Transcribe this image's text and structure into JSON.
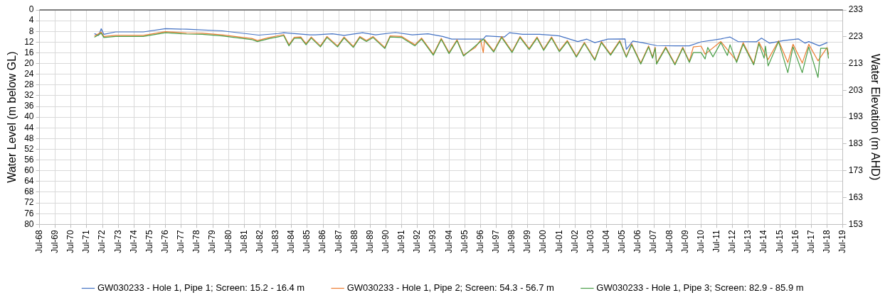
{
  "chart_data": {
    "type": "line",
    "xlabel": null,
    "ylabel": "Water Level (m below GL)",
    "y2label": "Water Elevation (m AHD)",
    "xlim": [
      "1968-07",
      "2019-07"
    ],
    "xticks": [
      {
        "value": "1968-07",
        "label": "Jul-68"
      },
      {
        "value": "1969-07",
        "label": "Jul-69"
      },
      {
        "value": "1970-07",
        "label": "Jul-70"
      },
      {
        "value": "1971-07",
        "label": "Jul-71"
      },
      {
        "value": "1972-07",
        "label": "Jul-72"
      },
      {
        "value": "1973-07",
        "label": "Jul-73"
      },
      {
        "value": "1974-07",
        "label": "Jul-74"
      },
      {
        "value": "1975-07",
        "label": "Jul-75"
      },
      {
        "value": "1976-07",
        "label": "Jul-76"
      },
      {
        "value": "1977-07",
        "label": "Jul-77"
      },
      {
        "value": "1978-07",
        "label": "Jul-78"
      },
      {
        "value": "1979-07",
        "label": "Jul-79"
      },
      {
        "value": "1980-07",
        "label": "Jul-80"
      },
      {
        "value": "1981-07",
        "label": "Jul-81"
      },
      {
        "value": "1982-07",
        "label": "Jul-82"
      },
      {
        "value": "1983-07",
        "label": "Jul-83"
      },
      {
        "value": "1984-07",
        "label": "Jul-84"
      },
      {
        "value": "1985-07",
        "label": "Jul-85"
      },
      {
        "value": "1986-07",
        "label": "Jul-86"
      },
      {
        "value": "1987-07",
        "label": "Jul-87"
      },
      {
        "value": "1988-07",
        "label": "Jul-88"
      },
      {
        "value": "1989-07",
        "label": "Jul-89"
      },
      {
        "value": "1990-07",
        "label": "Jul-90"
      },
      {
        "value": "1991-07",
        "label": "Jul-91"
      },
      {
        "value": "1992-07",
        "label": "Jul-92"
      },
      {
        "value": "1993-07",
        "label": "Jul-93"
      },
      {
        "value": "1994-07",
        "label": "Jul-94"
      },
      {
        "value": "1995-07",
        "label": "Jul-95"
      },
      {
        "value": "1996-07",
        "label": "Jul-96"
      },
      {
        "value": "1997-07",
        "label": "Jul-97"
      },
      {
        "value": "1998-07",
        "label": "Jul-98"
      },
      {
        "value": "1999-07",
        "label": "Jul-99"
      },
      {
        "value": "2000-07",
        "label": "Jul-00"
      },
      {
        "value": "2001-07",
        "label": "Jul-01"
      },
      {
        "value": "2002-07",
        "label": "Jul-02"
      },
      {
        "value": "2003-07",
        "label": "Jul-03"
      },
      {
        "value": "2004-07",
        "label": "Jul-04"
      },
      {
        "value": "2005-07",
        "label": "Jul-05"
      },
      {
        "value": "2006-07",
        "label": "Jul-06"
      },
      {
        "value": "2007-07",
        "label": "Jul-07"
      },
      {
        "value": "2008-07",
        "label": "Jul-08"
      },
      {
        "value": "2009-07",
        "label": "Jul-09"
      },
      {
        "value": "2010-07",
        "label": "Jul-10"
      },
      {
        "value": "2011-07",
        "label": "Jul-11"
      },
      {
        "value": "2012-07",
        "label": "Jul-12"
      },
      {
        "value": "2013-07",
        "label": "Jul-13"
      },
      {
        "value": "2014-07",
        "label": "Jul-14"
      },
      {
        "value": "2015-07",
        "label": "Jul-15"
      },
      {
        "value": "2016-07",
        "label": "Jul-16"
      },
      {
        "value": "2017-07",
        "label": "Jul-17"
      },
      {
        "value": "2018-07",
        "label": "Jul-18"
      },
      {
        "value": "2019-07",
        "label": "Jul-19"
      }
    ],
    "ylim": [
      80,
      0
    ],
    "yticks": [
      0,
      4,
      8,
      12,
      16,
      20,
      24,
      28,
      32,
      36,
      40,
      44,
      48,
      52,
      56,
      60,
      64,
      68,
      72,
      76,
      80
    ],
    "y2lim": [
      153,
      233
    ],
    "y2ticks": [
      153,
      163,
      173,
      183,
      193,
      203,
      213,
      223,
      233
    ],
    "grid": true,
    "legend": "bottom",
    "series": [
      {
        "name": "GW030233 - Hole 1, Pipe 1; Screen: 15.2 - 16.4 m",
        "color": "#4472c4",
        "x": [
          "1972-01",
          "1972-04",
          "1972-06",
          "1972-08",
          "1973-05",
          "1975-02",
          "1976-07",
          "1977-11",
          "1980-02",
          "1982-06",
          "1983-09",
          "1984-01",
          "1985-09",
          "1986-01",
          "1987-02",
          "1987-11",
          "1989-01",
          "1989-11",
          "1991-02",
          "1992-03",
          "1993-03",
          "1994-02",
          "1994-09",
          "1996-01",
          "1996-09",
          "1996-11",
          "1998-01",
          "1998-05",
          "1999-03",
          "2000-04",
          "2001-03",
          "2001-07",
          "2002-09",
          "2003-04",
          "2003-10",
          "2004-08",
          "2005-09",
          "2005-10",
          "2006-03",
          "2006-10",
          "2007-09",
          "2008-11",
          "2009-10",
          "2010-07",
          "2011-10",
          "2012-05",
          "2012-11",
          "2014-01",
          "2014-05",
          "2014-11",
          "2015-10",
          "2016-09",
          "2017-02",
          "2017-05",
          "2018-01",
          "2018-07"
        ],
        "values": [
          8.9,
          9.5,
          7.0,
          9.1,
          8.2,
          8.2,
          7.0,
          7.2,
          7.8,
          9.4,
          8.8,
          8.5,
          9.3,
          9.3,
          8.9,
          9.5,
          8.5,
          9.3,
          8.4,
          9.3,
          8.9,
          9.9,
          10.9,
          10.9,
          10.9,
          9.7,
          10.1,
          8.5,
          9.1,
          9.1,
          9.5,
          9.7,
          11.8,
          10.9,
          12.2,
          10.9,
          10.8,
          14.7,
          11.6,
          12.2,
          13.3,
          13.4,
          13.4,
          11.9,
          10.8,
          10.1,
          11.8,
          11.9,
          10.5,
          12.4,
          11.4,
          10.8,
          12.4,
          11.8,
          13.4,
          12.2
        ]
      },
      {
        "name": "GW030233 - Hole 1, Pipe 2; Screen: 54.3 - 56.7 m",
        "color": "#ed7d31",
        "x": [
          "1972-01",
          "1972-06",
          "1972-08",
          "1973-05",
          "1975-02",
          "1976-07",
          "1977-11",
          "1978-11",
          "1980-02",
          "1981-03",
          "1982-01",
          "1982-05",
          "1983-02",
          "1983-09",
          "1984-01",
          "1984-05",
          "1984-09",
          "1985-02",
          "1985-06",
          "1985-10",
          "1986-05",
          "1986-10",
          "1987-06",
          "1987-11",
          "1988-06",
          "1988-11",
          "1989-04",
          "1989-09",
          "1990-06",
          "1990-10",
          "1991-07",
          "1992-05",
          "1992-10",
          "1993-07",
          "1994-01",
          "1994-07",
          "1995-01",
          "1995-06",
          "1996-03",
          "1996-07",
          "1996-09",
          "1996-10",
          "1997-05",
          "1997-11",
          "1998-07",
          "1999-01",
          "1999-08",
          "2000-02",
          "2000-07",
          "2001-01",
          "2001-07",
          "2002-01",
          "2002-08",
          "2003-02",
          "2003-10",
          "2004-03",
          "2004-10",
          "2005-05",
          "2005-10",
          "2006-02",
          "2006-09",
          "2007-03",
          "2007-06",
          "2007-08",
          "2007-09",
          "2008-04",
          "2008-11",
          "2009-05",
          "2009-10",
          "2010-01",
          "2010-07",
          "2010-10",
          "2011-10",
          "2012-10",
          "2013-03",
          "2013-11",
          "2014-03",
          "2014-10",
          "2015-06",
          "2016-01",
          "2016-05",
          "2016-12",
          "2017-05",
          "2017-12",
          "2018-07",
          "2018-08"
        ],
        "values": [
          9.7,
          8.3,
          9.9,
          9.5,
          9.5,
          8.1,
          8.6,
          8.7,
          9.3,
          10.1,
          10.7,
          11.4,
          10.3,
          9.6,
          9.2,
          13.0,
          10.2,
          10.1,
          12.6,
          10.1,
          13.4,
          9.9,
          13.4,
          10.1,
          13.6,
          9.9,
          11.4,
          9.9,
          14.0,
          9.7,
          9.9,
          13.0,
          10.5,
          16.5,
          10.6,
          15.9,
          11.1,
          16.8,
          14.0,
          11.2,
          15.9,
          11.0,
          15.3,
          9.9,
          15.5,
          9.9,
          14.4,
          10.1,
          14.7,
          10.1,
          15.2,
          11.4,
          17.2,
          12.1,
          18.4,
          11.8,
          16.5,
          11.4,
          17.3,
          12.6,
          19.8,
          13.4,
          17.6,
          13.9,
          19.8,
          13.8,
          20.1,
          13.9,
          19.2,
          13.8,
          13.5,
          16.5,
          11.8,
          19.0,
          12.2,
          20.0,
          12.0,
          18.5,
          11.5,
          19.6,
          12.8,
          19.8,
          12.8,
          19.0,
          14.0,
          16.5
        ]
      },
      {
        "name": "GW030233 - Hole 1, Pipe 3; Screen: 82.9 - 85.9 m",
        "color": "#4a9e48",
        "x": [
          "1972-01",
          "1972-06",
          "1972-08",
          "1973-05",
          "1975-02",
          "1976-07",
          "1977-11",
          "1978-11",
          "1980-02",
          "1981-03",
          "1982-01",
          "1982-05",
          "1983-02",
          "1983-09",
          "1984-01",
          "1984-05",
          "1984-09",
          "1985-02",
          "1985-06",
          "1985-10",
          "1986-05",
          "1986-10",
          "1987-06",
          "1987-11",
          "1988-06",
          "1988-11",
          "1989-04",
          "1989-09",
          "1990-06",
          "1990-10",
          "1991-07",
          "1992-05",
          "1992-10",
          "1993-07",
          "1994-01",
          "1994-07",
          "1995-01",
          "1995-06",
          "1996-09",
          "1997-05",
          "1997-11",
          "1998-07",
          "1999-01",
          "1999-08",
          "2000-02",
          "2000-07",
          "2001-01",
          "2001-07",
          "2002-01",
          "2002-08",
          "2003-02",
          "2003-10",
          "2004-03",
          "2004-10",
          "2005-05",
          "2005-10",
          "2006-02",
          "2006-09",
          "2007-03",
          "2007-06",
          "2007-08",
          "2007-09",
          "2008-04",
          "2008-11",
          "2009-05",
          "2009-10",
          "2010-01",
          "2010-07",
          "2010-10",
          "2010-12",
          "2011-04",
          "2011-10",
          "2012-03",
          "2012-05",
          "2012-10",
          "2013-03",
          "2013-11",
          "2014-03",
          "2014-07",
          "2014-08",
          "2014-10",
          "2015-06",
          "2016-01",
          "2016-05",
          "2016-12",
          "2017-05",
          "2017-12",
          "2018-02",
          "2018-07",
          "2018-08"
        ],
        "values": [
          10.1,
          8.7,
          10.3,
          9.9,
          9.9,
          8.5,
          9.0,
          9.1,
          9.7,
          10.5,
          11.1,
          11.8,
          10.7,
          10.0,
          9.6,
          13.4,
          10.6,
          10.5,
          13.0,
          10.5,
          13.8,
          10.3,
          13.8,
          10.5,
          14.0,
          10.3,
          11.8,
          10.3,
          14.4,
          10.1,
          10.3,
          13.4,
          10.9,
          16.9,
          11.0,
          16.3,
          11.5,
          17.2,
          10.9,
          15.7,
          10.3,
          15.9,
          10.3,
          14.8,
          10.5,
          15.1,
          10.5,
          15.6,
          11.8,
          17.6,
          12.5,
          18.8,
          12.2,
          16.9,
          11.8,
          17.7,
          13.0,
          20.2,
          13.8,
          18.0,
          14.3,
          20.2,
          14.2,
          20.5,
          14.3,
          19.6,
          15.9,
          15.9,
          18.3,
          14.0,
          17.5,
          12.2,
          17.0,
          13.0,
          19.6,
          12.8,
          20.5,
          12.6,
          18.0,
          13.5,
          20.9,
          11.8,
          23.4,
          13.8,
          23.4,
          13.8,
          25.2,
          14.3,
          14.3,
          18.0
        ]
      }
    ]
  }
}
